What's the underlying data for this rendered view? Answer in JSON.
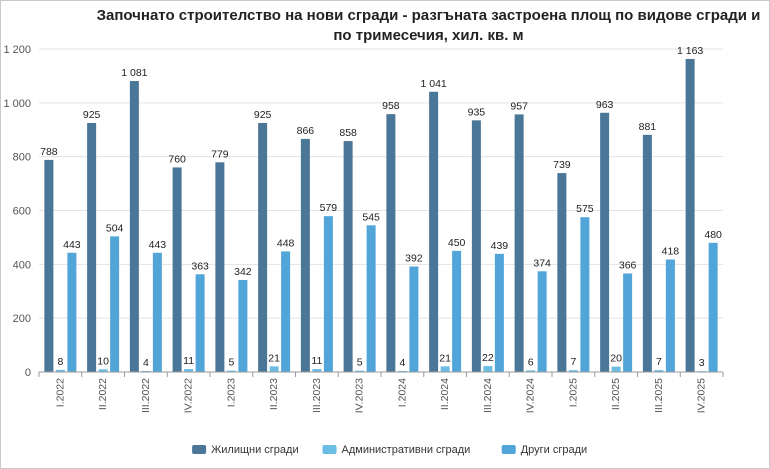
{
  "chart_data": {
    "type": "bar",
    "title": "Започнато строителство на нови сгради - разгъната застроена площ по видове сгради и по тримесечия, хил. кв. м",
    "xlabel": "",
    "ylabel": "",
    "ylim": [
      0,
      1200
    ],
    "yticks": [
      0,
      200,
      400,
      600,
      800,
      1000,
      1200
    ],
    "ytick_labels": [
      "0",
      "200",
      "400",
      "600",
      "800",
      "1 000",
      "1 200"
    ],
    "categories": [
      "I.2022",
      "II.2022",
      "III.2022",
      "IV.2022",
      "I.2023",
      "II.2023",
      "III.2023",
      "IV.2023",
      "I.2024",
      "II.2024",
      "III.2024",
      "IV.2024",
      "I.2025",
      "II.2025",
      "III.2025",
      "IV.2025"
    ],
    "series": [
      {
        "name": "Жилищни сгради",
        "color": "#4a7698",
        "values": [
          788,
          925,
          1081,
          760,
          779,
          925,
          866,
          858,
          958,
          1041,
          935,
          957,
          739,
          963,
          881,
          1163
        ],
        "labels": [
          "788",
          "925",
          "1 081",
          "760",
          "779",
          "925",
          "866",
          "858",
          "958",
          "1 041",
          "935",
          "957",
          "739",
          "963",
          "881",
          "1 163"
        ]
      },
      {
        "name": "Административни сгради",
        "color": "#6cbde4",
        "values": [
          8,
          10,
          4,
          11,
          5,
          21,
          11,
          5,
          4,
          21,
          22,
          6,
          7,
          20,
          7,
          3
        ],
        "labels": [
          "8",
          "10",
          "4",
          "11",
          "5",
          "21",
          "11",
          "5",
          "4",
          "21",
          "22",
          "6",
          "7",
          "20",
          "7",
          "3"
        ]
      },
      {
        "name": "Други сгради",
        "color": "#51a5d9",
        "values": [
          443,
          504,
          443,
          363,
          342,
          448,
          579,
          545,
          392,
          450,
          439,
          374,
          575,
          366,
          418,
          480
        ],
        "labels": [
          "443",
          "504",
          "443",
          "363",
          "342",
          "448",
          "579",
          "545",
          "392",
          "450",
          "439",
          "374",
          "575",
          "366",
          "418",
          "480"
        ]
      }
    ],
    "grid": true,
    "legend_position": "bottom-center"
  }
}
